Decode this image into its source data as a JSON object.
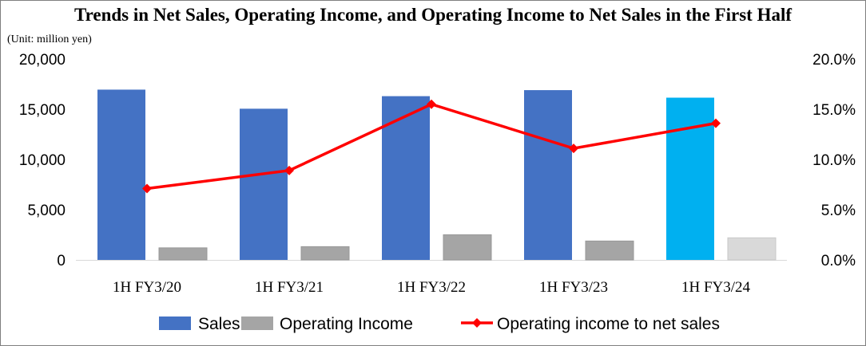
{
  "chart_data": {
    "type": "bar",
    "title": "Trends in Net Sales, Operating Income, and Operating Income to Net Sales in the First Half",
    "unit_label": "(Unit: million yen)",
    "categories": [
      "1H FY3/20",
      "1H FY3/21",
      "1H FY3/22",
      "1H FY3/23",
      "1H FY3/24"
    ],
    "series": [
      {
        "name": "Sales",
        "type": "bar",
        "axis": "left",
        "color": "#4472C4",
        "highlight_color": "#00B0F0",
        "values": [
          16950,
          15050,
          16300,
          16900,
          16150
        ]
      },
      {
        "name": "Operating Income",
        "type": "bar",
        "axis": "left",
        "color": "#A5A5A5",
        "highlight_color": "#D9D9D9",
        "values": [
          1200,
          1320,
          2500,
          1880,
          2200
        ]
      },
      {
        "name": "Operating income to net sales",
        "type": "line",
        "axis": "right",
        "color": "#FF0000",
        "values": [
          7.1,
          8.9,
          15.5,
          11.1,
          13.6
        ]
      }
    ],
    "highlight_index": 4,
    "ylim_left": [
      0,
      20000
    ],
    "yticks_left": [
      "0",
      "5,000",
      "10,000",
      "15,000",
      "20,000"
    ],
    "ylim_right": [
      0,
      20
    ],
    "yticks_right": [
      "0.0%",
      "5.0%",
      "10.0%",
      "15.0%",
      "20.0%"
    ],
    "grid": false,
    "legend_position": "bottom"
  }
}
